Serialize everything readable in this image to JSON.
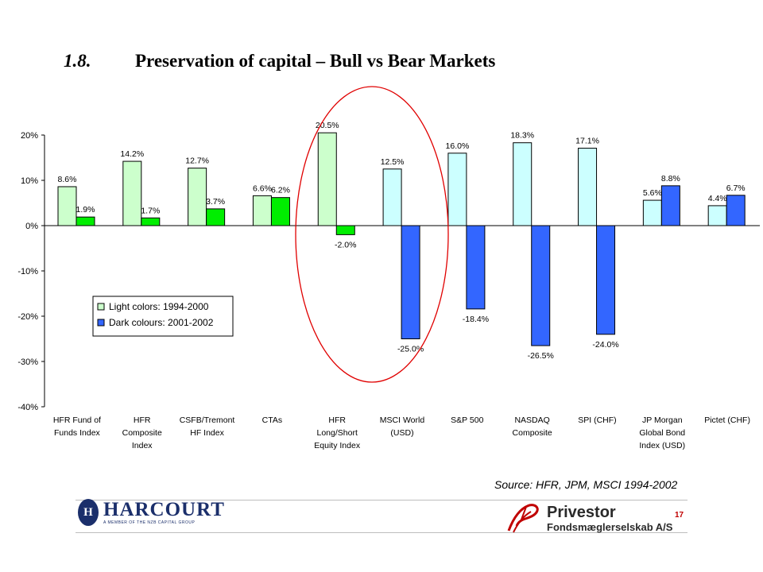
{
  "slide": {
    "number": "1.8.",
    "title": "Preservation of capital – Bull vs Bear Markets",
    "source": "Source: HFR, JPM, MSCI 1994-2002",
    "page_number": "17",
    "logo_left": {
      "name": "HARCOURT",
      "tagline": "A MEMBER OF THE NZB CAPITAL GROUP",
      "monogram": "H"
    },
    "logo_right": {
      "name": "Privestor",
      "subtitle": "Fondsmæglerselskab A/S"
    }
  },
  "chart_data": {
    "type": "bar",
    "title": "",
    "xlabel": "",
    "ylabel": "",
    "ylim": [
      -40,
      20
    ],
    "yticks": [
      20,
      10,
      0,
      -10,
      -20,
      -30,
      -40
    ],
    "ytick_labels": [
      "20%",
      "10%",
      "0%",
      "-10%",
      "-20%",
      "-30%",
      "-40%"
    ],
    "grid": false,
    "legend_position": "left, below the zero line",
    "categories": [
      [
        "HFR Fund of",
        "Funds Index"
      ],
      [
        "HFR",
        "Composite",
        "Index"
      ],
      [
        "CSFB/Tremont",
        "HF Index"
      ],
      [
        "CTAs"
      ],
      [
        "HFR",
        "Long/Short",
        "Equity Index"
      ],
      [
        "MSCI World",
        "(USD)"
      ],
      [
        "S&P 500"
      ],
      [
        "NASDAQ",
        "Composite"
      ],
      [
        "SPI (CHF)"
      ],
      [
        "JP Morgan",
        "Global Bond",
        "Index (USD)"
      ],
      [
        "Pictet (CHF)"
      ]
    ],
    "series": [
      {
        "name": "Light colors: 1994-2000",
        "values": [
          8.6,
          14.2,
          12.7,
          6.6,
          20.5,
          12.5,
          16.0,
          18.3,
          17.1,
          5.6,
          4.4
        ],
        "labels": [
          "8.6%",
          "14.2%",
          "12.7%",
          "6.6%",
          "20.5%",
          "12.5%",
          "16.0%",
          "18.3%",
          "17.1%",
          "5.6%",
          "4.4%"
        ]
      },
      {
        "name": "Dark colours: 2001-2002",
        "values": [
          1.9,
          1.7,
          3.7,
          6.2,
          -2.0,
          -25.0,
          -18.4,
          -26.5,
          -24.0,
          8.8,
          6.7
        ],
        "labels": [
          "1.9%",
          "1.7%",
          "3.7%",
          "6.2%",
          "-2.0%",
          "-25.0%",
          "-18.4%",
          "-26.5%",
          "-24.0%",
          "8.8%",
          "6.7%"
        ]
      }
    ],
    "group_style": [
      "green",
      "green",
      "green",
      "green",
      "green",
      "blue",
      "blue",
      "blue",
      "blue",
      "blue",
      "blue"
    ],
    "colors": {
      "green_light": "#ccffcc",
      "green_dark": "#00ee00",
      "blue_light": "#ccffff",
      "blue_dark": "#3366ff",
      "highlight_ellipse": "#e00000",
      "legend_light_swatch": "#ccffcc",
      "legend_dark_swatch": "#3366ff"
    }
  }
}
